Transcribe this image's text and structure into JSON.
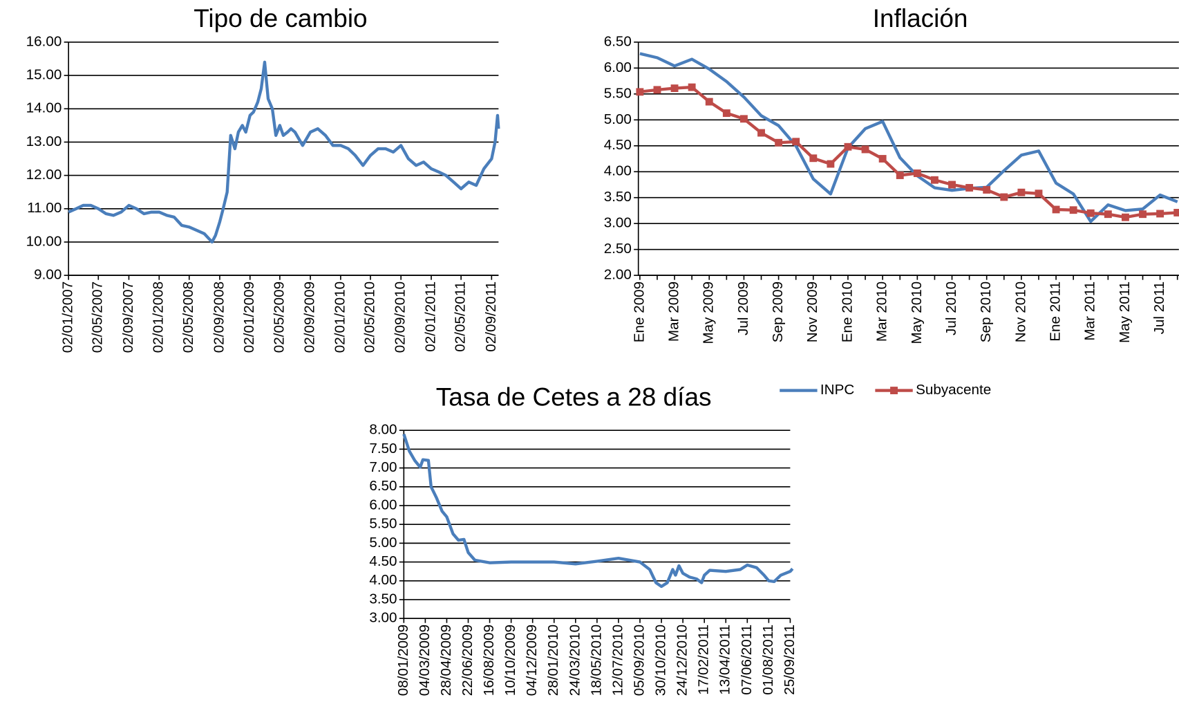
{
  "chart_data": [
    {
      "type": "line",
      "title": "Tipo de cambio",
      "color": "#4a7ebb",
      "x": [
        "02/01/2007",
        "02/02/2007",
        "02/03/2007",
        "02/04/2007",
        "02/05/2007",
        "02/06/2007",
        "02/07/2007",
        "02/08/2007",
        "02/09/2007",
        "02/10/2007",
        "02/11/2007",
        "02/12/2007",
        "02/01/2008",
        "02/02/2008",
        "02/03/2008",
        "02/04/2008",
        "02/05/2008",
        "02/06/2008",
        "02/07/2008",
        "02/08/2008",
        "16/08/2008",
        "02/09/2008",
        "16/09/2008",
        "02/10/2008",
        "16/10/2008",
        "02/11/2008",
        "16/11/2008",
        "02/12/2008",
        "16/12/2008",
        "02/01/2009",
        "16/01/2009",
        "02/02/2009",
        "16/02/2009",
        "02/03/2009",
        "16/03/2009",
        "02/04/2009",
        "16/04/2009",
        "02/05/2009",
        "16/05/2009",
        "02/06/2009",
        "16/06/2009",
        "02/07/2009",
        "02/08/2009",
        "02/09/2009",
        "02/10/2009",
        "02/11/2009",
        "02/12/2009",
        "02/01/2010",
        "02/02/2010",
        "02/03/2010",
        "02/04/2010",
        "02/05/2010",
        "02/06/2010",
        "02/07/2010",
        "02/08/2010",
        "02/09/2010",
        "02/10/2010",
        "02/11/2010",
        "02/12/2010",
        "02/01/2011",
        "02/02/2011",
        "02/03/2011",
        "02/04/2011",
        "02/05/2011",
        "02/06/2011",
        "02/07/2011",
        "02/08/2011",
        "02/09/2011",
        "16/09/2011",
        "26/09/2011",
        "30/09/2011"
      ],
      "values": [
        10.9,
        11.0,
        11.1,
        11.1,
        11.0,
        10.85,
        10.8,
        10.9,
        11.1,
        11.0,
        10.85,
        10.9,
        10.9,
        10.8,
        10.75,
        10.5,
        10.45,
        10.35,
        10.25,
        10.0,
        10.2,
        10.6,
        11.0,
        11.5,
        13.2,
        12.8,
        13.3,
        13.5,
        13.3,
        13.8,
        13.9,
        14.2,
        14.6,
        15.4,
        14.3,
        14.0,
        13.2,
        13.5,
        13.2,
        13.3,
        13.4,
        13.3,
        12.9,
        13.3,
        13.4,
        13.2,
        12.9,
        12.9,
        12.8,
        12.6,
        12.3,
        12.6,
        12.8,
        12.8,
        12.7,
        12.9,
        12.5,
        12.3,
        12.4,
        12.2,
        12.1,
        12.0,
        11.8,
        11.6,
        11.8,
        11.7,
        12.2,
        12.5,
        13.0,
        13.8,
        13.4
      ],
      "xlim": [
        "02/01/2007",
        "30/09/2011"
      ],
      "xticks": [
        "02/01/2007",
        "02/05/2007",
        "02/09/2007",
        "02/01/2008",
        "02/05/2008",
        "02/09/2008",
        "02/01/2009",
        "02/05/2009",
        "02/09/2009",
        "02/01/2010",
        "02/05/2010",
        "02/09/2010",
        "02/01/2011",
        "02/05/2011",
        "02/09/2011"
      ],
      "ylim": [
        9,
        16
      ],
      "yticks": [
        {
          "value": 9,
          "label": "9.00"
        },
        {
          "value": 10,
          "label": "10.00"
        },
        {
          "value": 11,
          "label": "11.00"
        },
        {
          "value": 12,
          "label": "12.00"
        },
        {
          "value": 13,
          "label": "13.00"
        },
        {
          "value": 14,
          "label": "14.00"
        },
        {
          "value": 15,
          "label": "15.00"
        },
        {
          "value": 16,
          "label": "16.00"
        }
      ],
      "grid": true
    },
    {
      "type": "line",
      "title": "Inflación",
      "categories": [
        "Ene 2009",
        null,
        "Mar 2009",
        null,
        "May 2009",
        null,
        "Jul 2009",
        null,
        "Sep 2009",
        null,
        "Nov 2009",
        null,
        "Ene 2010",
        null,
        "Mar 2010",
        null,
        "May 2010",
        null,
        "Jul 2010",
        null,
        "Sep 2010",
        null,
        "Nov 2010",
        null,
        "Ene 2011",
        null,
        "Mar 2011",
        null,
        "May 2011",
        null,
        "Jul 2011",
        null
      ],
      "series": [
        {
          "name": "INPC",
          "color": "#4a7ebb",
          "marker": "none",
          "values": [
            6.28,
            6.2,
            6.04,
            6.17,
            5.98,
            5.74,
            5.44,
            5.08,
            4.89,
            4.5,
            3.86,
            3.57,
            4.46,
            4.83,
            4.97,
            4.27,
            3.92,
            3.69,
            3.64,
            3.68,
            3.7,
            4.02,
            4.32,
            4.4,
            3.78,
            3.57,
            3.04,
            3.36,
            3.25,
            3.28,
            3.55,
            3.42
          ]
        },
        {
          "name": "Subyacente",
          "color": "#be4b48",
          "marker": "square",
          "values": [
            5.54,
            5.58,
            5.61,
            5.63,
            5.35,
            5.13,
            5.02,
            4.75,
            4.56,
            4.58,
            4.26,
            4.15,
            4.48,
            4.43,
            4.25,
            3.93,
            3.97,
            3.84,
            3.75,
            3.69,
            3.65,
            3.51,
            3.6,
            3.58,
            3.27,
            3.26,
            3.2,
            3.18,
            3.12,
            3.18,
            3.19,
            3.21
          ]
        }
      ],
      "ylim": [
        2,
        6.5
      ],
      "yticks": [
        {
          "value": 2,
          "label": "2.00"
        },
        {
          "value": 2.5,
          "label": "2.50"
        },
        {
          "value": 3,
          "label": "3.00"
        },
        {
          "value": 3.5,
          "label": "3.50"
        },
        {
          "value": 4,
          "label": "4.00"
        },
        {
          "value": 4.5,
          "label": "4.50"
        },
        {
          "value": 5,
          "label": "5.00"
        },
        {
          "value": 5.5,
          "label": "5.50"
        },
        {
          "value": 6,
          "label": "6.00"
        },
        {
          "value": 6.5,
          "label": "6.50"
        }
      ],
      "grid": true,
      "legend": "bottom"
    },
    {
      "type": "line",
      "title": "Tasa de Cetes a 28 días",
      "color": "#4a7ebb",
      "x": [
        "08/01/2009",
        "22/01/2009",
        "05/02/2009",
        "19/02/2009",
        "26/02/2009",
        "12/03/2009",
        "19/03/2009",
        "02/04/2009",
        "16/04/2009",
        "28/04/2009",
        "14/05/2009",
        "28/05/2009",
        "11/06/2009",
        "22/06/2009",
        "09/07/2009",
        "16/08/2009",
        "10/10/2009",
        "04/12/2009",
        "28/01/2010",
        "24/03/2010",
        "18/05/2010",
        "12/07/2010",
        "05/09/2010",
        "30/09/2010",
        "16/10/2010",
        "30/10/2010",
        "14/11/2010",
        "28/11/2010",
        "05/12/2010",
        "14/12/2010",
        "24/12/2010",
        "10/01/2011",
        "28/01/2011",
        "10/02/2011",
        "17/02/2011",
        "03/03/2011",
        "13/04/2011",
        "20/05/2011",
        "07/06/2011",
        "01/07/2011",
        "20/07/2011",
        "01/08/2011",
        "15/08/2011",
        "01/09/2011",
        "25/09/2011",
        "01/10/2011"
      ],
      "values": [
        7.9,
        7.45,
        7.2,
        7.02,
        7.22,
        7.2,
        6.5,
        6.2,
        5.85,
        5.7,
        5.25,
        5.08,
        5.1,
        4.75,
        4.55,
        4.48,
        4.5,
        4.5,
        4.5,
        4.45,
        4.52,
        4.6,
        4.5,
        4.3,
        3.95,
        3.85,
        3.95,
        4.3,
        4.15,
        4.4,
        4.2,
        4.1,
        4.05,
        3.95,
        4.15,
        4.28,
        4.25,
        4.3,
        4.42,
        4.35,
        4.15,
        4.0,
        3.98,
        4.15,
        4.25,
        4.32
      ],
      "xlim": [
        "08/01/2009",
        "25/09/2011"
      ],
      "xticks": [
        "08/01/2009",
        "04/03/2009",
        "28/04/2009",
        "22/06/2009",
        "16/08/2009",
        "10/10/2009",
        "04/12/2009",
        "28/01/2010",
        "24/03/2010",
        "18/05/2010",
        "12/07/2010",
        "05/09/2010",
        "30/10/2010",
        "24/12/2010",
        "17/02/2011",
        "13/04/2011",
        "07/06/2011",
        "01/08/2011",
        "25/09/2011"
      ],
      "ylim": [
        3,
        8
      ],
      "yticks": [
        {
          "value": 3,
          "label": "3.00"
        },
        {
          "value": 3.5,
          "label": "3.50"
        },
        {
          "value": 4,
          "label": "4.00"
        },
        {
          "value": 4.5,
          "label": "4.50"
        },
        {
          "value": 5,
          "label": "5.00"
        },
        {
          "value": 5.5,
          "label": "5.50"
        },
        {
          "value": 6,
          "label": "6.00"
        },
        {
          "value": 6.5,
          "label": "6.50"
        },
        {
          "value": 7,
          "label": "7.00"
        },
        {
          "value": 7.5,
          "label": "7.50"
        },
        {
          "value": 8,
          "label": "8.00"
        }
      ],
      "grid": true
    }
  ]
}
